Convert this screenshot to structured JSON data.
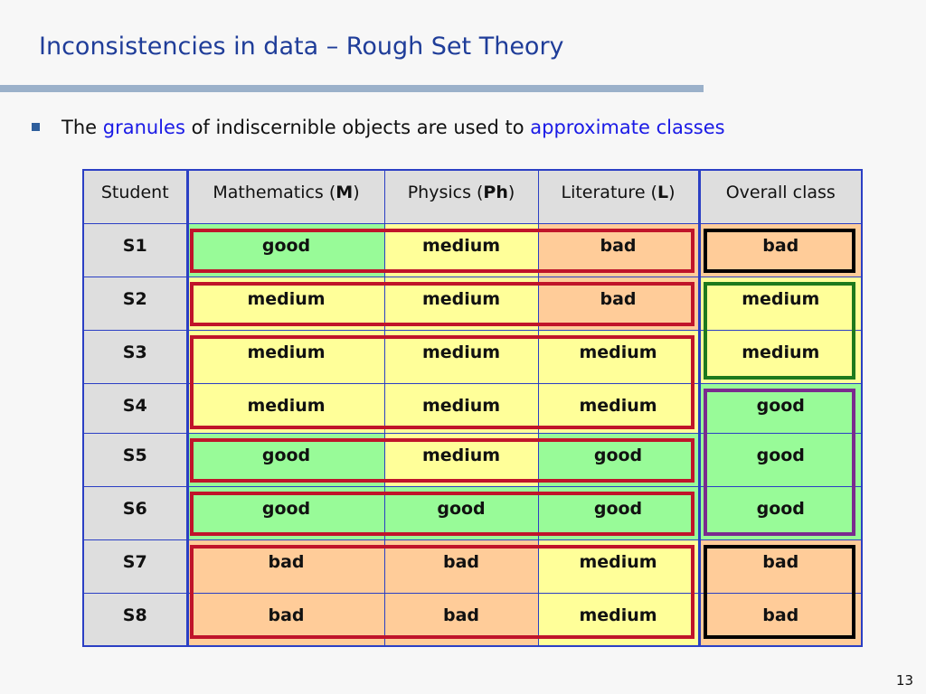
{
  "slide": {
    "title": "Inconsistencies in data – Rough Set Theory",
    "bullet": {
      "pre": "The ",
      "hl1": "granules",
      "mid": " of indiscernible objects are used to ",
      "hl2": "approximate classes"
    },
    "page_number": "13"
  },
  "table": {
    "headers": {
      "student": "Student",
      "math_pre": "Mathematics (",
      "math_code": "M",
      "math_post": ")",
      "phys_pre": "Physics (",
      "phys_code": "Ph",
      "phys_post": ")",
      "lit_pre": "Literature (",
      "lit_code": "L",
      "lit_post": ")",
      "overall": "Overall class"
    },
    "rows": [
      {
        "student": "S1",
        "math": "good",
        "phys": "medium",
        "lit": "bad",
        "overall": "bad"
      },
      {
        "student": "S2",
        "math": "medium",
        "phys": "medium",
        "lit": "bad",
        "overall": "medium"
      },
      {
        "student": "S3",
        "math": "medium",
        "phys": "medium",
        "lit": "medium",
        "overall": "medium"
      },
      {
        "student": "S4",
        "math": "medium",
        "phys": "medium",
        "lit": "medium",
        "overall": "good"
      },
      {
        "student": "S5",
        "math": "good",
        "phys": "medium",
        "lit": "good",
        "overall": "good"
      },
      {
        "student": "S6",
        "math": "good",
        "phys": "good",
        "lit": "good",
        "overall": "good"
      },
      {
        "student": "S7",
        "math": "bad",
        "phys": "bad",
        "lit": "medium",
        "overall": "bad"
      },
      {
        "student": "S8",
        "math": "bad",
        "phys": "bad",
        "lit": "medium",
        "overall": "bad"
      }
    ]
  },
  "colors": {
    "good": "#98fb98",
    "medium": "#ffff99",
    "bad": "#ffcc99",
    "granule_outline": "#c0142a",
    "class_bad_outline": "#000000",
    "class_medium_outline": "#1d7a1d",
    "class_good_outline": "#7a2a8e"
  }
}
